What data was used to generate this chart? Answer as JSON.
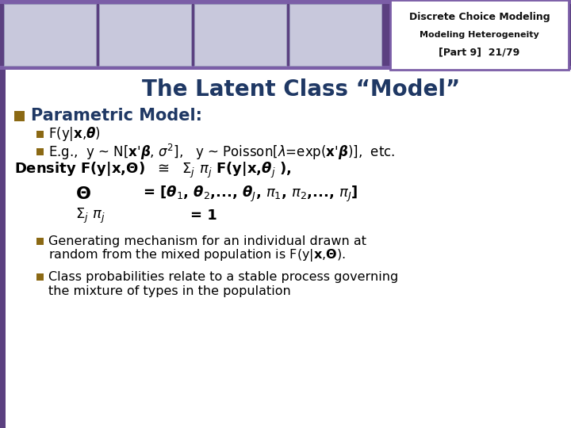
{
  "title": "The Latent Class “Model”",
  "title_color": "#1F3864",
  "bg_color": "#FFFFFF",
  "header_bg": "#5B4080",
  "header_stripe_top": "#7B5EA7",
  "bullet_color": "#8B6914",
  "main_bullet_color": "#1F3864",
  "body_text_color": "#000000",
  "left_bar_color": "#5B4080",
  "header_text1": "Discrete Choice Modeling",
  "header_text2": "Modeling Heterogeneity",
  "header_text3": "[Part 9]  21/79",
  "header_text_color": "#1F1F1F",
  "slide_border_color": "#7B5EA7",
  "thumb_face": "#C8C8DC",
  "thumb_edge": "#9999BB"
}
